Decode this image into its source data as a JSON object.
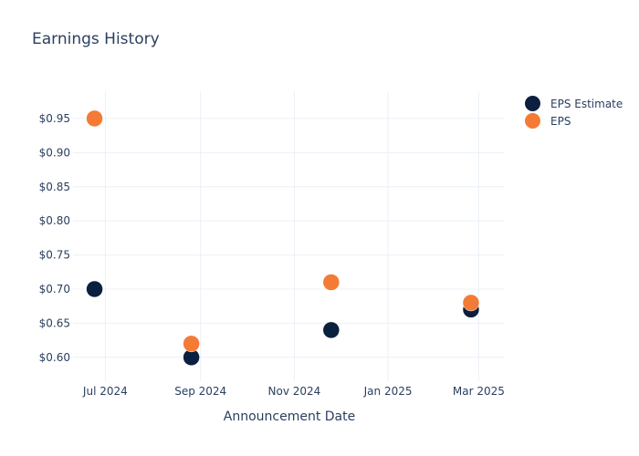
{
  "chart_data": {
    "type": "scatter",
    "title": "Earnings History",
    "xlabel": "Announcement Date",
    "ylabel": "",
    "x_type": "date",
    "x_tick_labels": [
      "Jul 2024",
      "Sep 2024",
      "Nov 2024",
      "Jan 2025",
      "Mar 2025"
    ],
    "x_ticks": [
      "2024-07-01",
      "2024-09-01",
      "2024-11-01",
      "2025-01-01",
      "2025-03-01"
    ],
    "xlim": [
      "2024-06-10",
      "2025-03-18"
    ],
    "y_tick_labels": [
      "$0.60",
      "$0.65",
      "$0.70",
      "$0.75",
      "$0.80",
      "$0.85",
      "$0.90",
      "$0.95"
    ],
    "y_ticks": [
      0.6,
      0.65,
      0.7,
      0.75,
      0.8,
      0.85,
      0.9,
      0.95
    ],
    "ylim": [
      0.565,
      0.99
    ],
    "grid": true,
    "legend_position": "top-right",
    "series": [
      {
        "name": "EPS Estimate",
        "color": "#0b1f3f",
        "points": [
          {
            "x": "2024-06-24",
            "y": 0.7
          },
          {
            "x": "2024-08-26",
            "y": 0.6
          },
          {
            "x": "2024-11-25",
            "y": 0.64
          },
          {
            "x": "2025-02-24",
            "y": 0.67
          }
        ]
      },
      {
        "name": "EPS",
        "color": "#f47b35",
        "points": [
          {
            "x": "2024-06-24",
            "y": 0.95
          },
          {
            "x": "2024-08-26",
            "y": 0.62
          },
          {
            "x": "2024-11-25",
            "y": 0.71
          },
          {
            "x": "2025-02-24",
            "y": 0.68
          }
        ]
      }
    ]
  }
}
